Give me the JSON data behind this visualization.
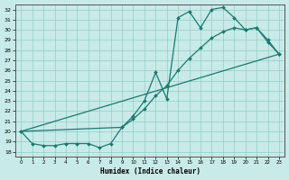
{
  "xlabel": "Humidex (Indice chaleur)",
  "line_color": "#1a7a6e",
  "bg_color": "#c8eae8",
  "grid_color": "#8fcec8",
  "xlim": [
    -0.5,
    23.5
  ],
  "ylim": [
    17.5,
    32.5
  ],
  "yticks": [
    18,
    19,
    20,
    21,
    22,
    23,
    24,
    25,
    26,
    27,
    28,
    29,
    30,
    31,
    32
  ],
  "xticks": [
    0,
    1,
    2,
    3,
    4,
    5,
    6,
    7,
    8,
    9,
    10,
    11,
    12,
    13,
    14,
    15,
    16,
    17,
    18,
    19,
    20,
    21,
    22,
    23
  ],
  "curve1_x": [
    0,
    1,
    2,
    3,
    4,
    5,
    6,
    7,
    8,
    9,
    10,
    11,
    12,
    13,
    14,
    15,
    16,
    17,
    18,
    19,
    20,
    21,
    22,
    23
  ],
  "curve1_y": [
    20.0,
    18.8,
    18.6,
    18.6,
    18.8,
    18.8,
    18.8,
    18.4,
    18.8,
    20.4,
    21.5,
    23.0,
    25.8,
    23.2,
    31.2,
    31.8,
    30.2,
    32.0,
    32.2,
    31.2,
    30.0,
    30.2,
    29.0,
    27.6
  ],
  "curve2_x": [
    0,
    23
  ],
  "curve2_y": [
    20.0,
    27.6
  ],
  "curve3_x": [
    0,
    9,
    10,
    11,
    12,
    13,
    14,
    15,
    16,
    17,
    18,
    19,
    20,
    21,
    22,
    23
  ],
  "curve3_y": [
    20.0,
    20.4,
    21.2,
    22.2,
    23.5,
    24.5,
    26.0,
    27.2,
    28.2,
    29.2,
    29.8,
    30.2,
    30.0,
    30.2,
    28.8,
    27.6
  ]
}
